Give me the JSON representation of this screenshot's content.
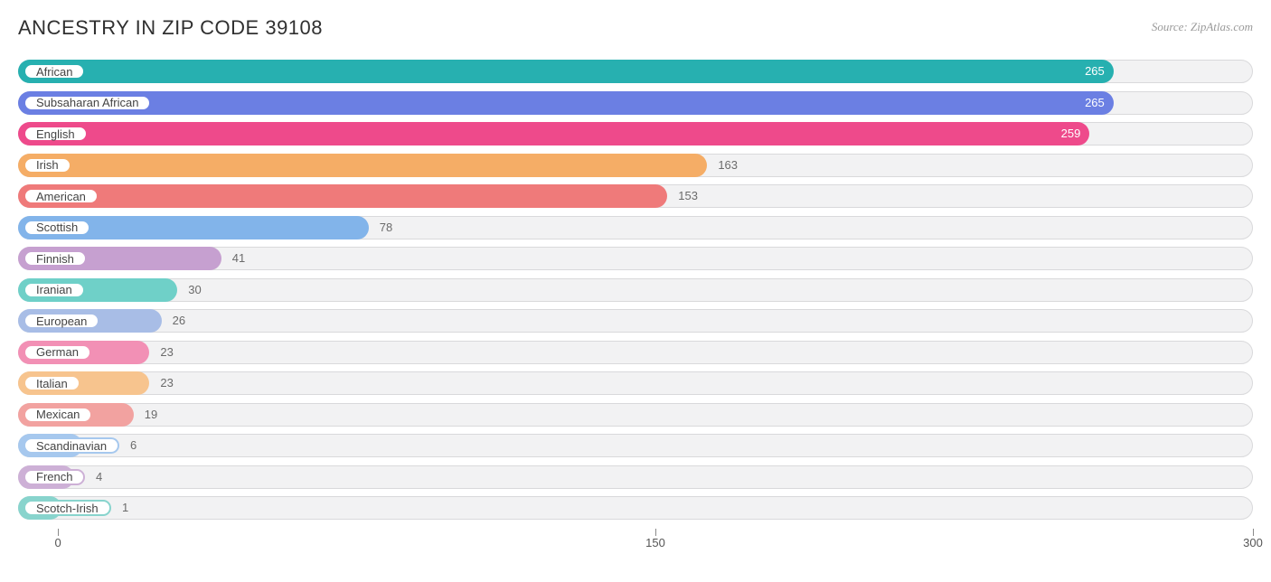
{
  "title": "ANCESTRY IN ZIP CODE 39108",
  "source": "Source: ZipAtlas.com",
  "chart": {
    "type": "bar",
    "orientation": "horizontal",
    "xmin": -10,
    "xmax": 300,
    "ticks": [
      0,
      150,
      300
    ],
    "track_bg": "#f2f2f3",
    "track_border": "#d9d9db",
    "title_color": "#303030",
    "label_fontsize": 13,
    "value_fontsize": 13,
    "series": [
      {
        "label": "African",
        "value": 265,
        "color": "#27b0b0",
        "value_inside": true,
        "value_color": "#ffffff"
      },
      {
        "label": "Subsaharan African",
        "value": 265,
        "color": "#6b7fe3",
        "value_inside": true,
        "value_color": "#ffffff"
      },
      {
        "label": "English",
        "value": 259,
        "color": "#ee4a8b",
        "value_inside": true,
        "value_color": "#ffffff"
      },
      {
        "label": "Irish",
        "value": 163,
        "color": "#f5ad66",
        "value_inside": false,
        "value_color": "#6b6b6b"
      },
      {
        "label": "American",
        "value": 153,
        "color": "#ef7a7a",
        "value_inside": false,
        "value_color": "#6b6b6b"
      },
      {
        "label": "Scottish",
        "value": 78,
        "color": "#82b4ea",
        "value_inside": false,
        "value_color": "#6b6b6b"
      },
      {
        "label": "Finnish",
        "value": 41,
        "color": "#c6a0d0",
        "value_inside": false,
        "value_color": "#6b6b6b"
      },
      {
        "label": "Iranian",
        "value": 30,
        "color": "#6fd0c8",
        "value_inside": false,
        "value_color": "#6b6b6b"
      },
      {
        "label": "European",
        "value": 26,
        "color": "#a8bde6",
        "value_inside": false,
        "value_color": "#6b6b6b"
      },
      {
        "label": "German",
        "value": 23,
        "color": "#f290b5",
        "value_inside": false,
        "value_color": "#6b6b6b"
      },
      {
        "label": "Italian",
        "value": 23,
        "color": "#f7c48e",
        "value_inside": false,
        "value_color": "#6b6b6b"
      },
      {
        "label": "Mexican",
        "value": 19,
        "color": "#f2a2a0",
        "value_inside": false,
        "value_color": "#6b6b6b"
      },
      {
        "label": "Scandinavian",
        "value": 6,
        "color": "#a6c8ee",
        "value_inside": false,
        "value_color": "#6b6b6b"
      },
      {
        "label": "French",
        "value": 4,
        "color": "#cdb0d6",
        "value_inside": false,
        "value_color": "#6b6b6b"
      },
      {
        "label": "Scotch-Irish",
        "value": 1,
        "color": "#88d4cd",
        "value_inside": false,
        "value_color": "#6b6b6b"
      }
    ]
  }
}
